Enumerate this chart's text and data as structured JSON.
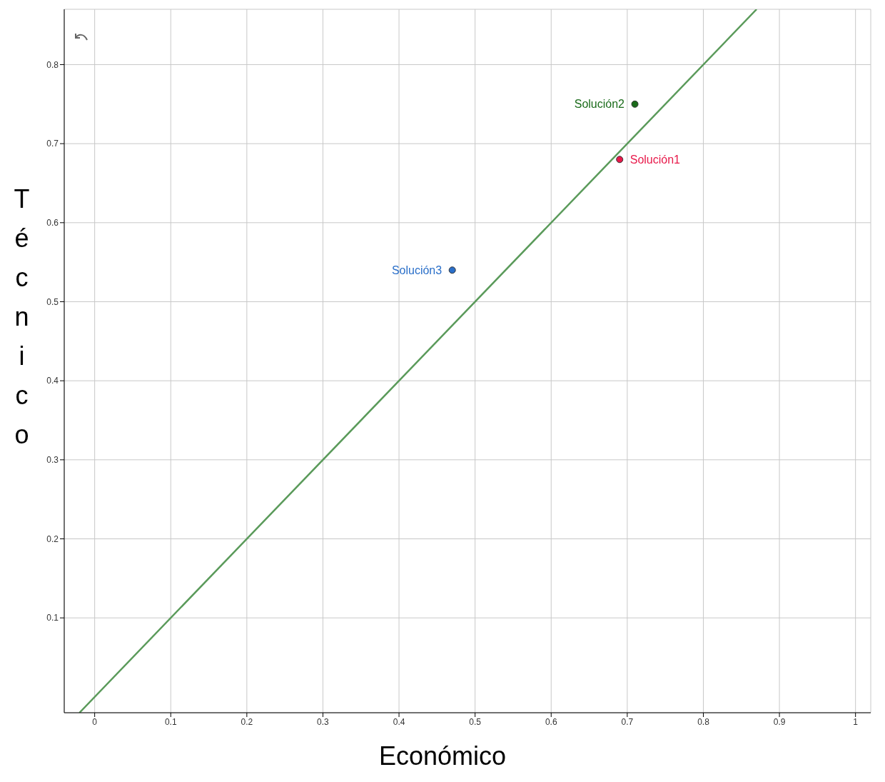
{
  "chart_data": {
    "type": "scatter",
    "xlabel": "Económico",
    "ylabel": "Técnico",
    "xlim": [
      -0.04,
      1.02
    ],
    "ylim": [
      -0.02,
      0.87
    ],
    "xticks": [
      0,
      0.1,
      0.2,
      0.3,
      0.4,
      0.5,
      0.6,
      0.7,
      0.8,
      0.9,
      1
    ],
    "yticks": [
      0.1,
      0.2,
      0.3,
      0.4,
      0.5,
      0.6,
      0.7,
      0.8
    ],
    "grid": true,
    "legend": false,
    "marker": "circle",
    "line_style": "solid",
    "series": [
      {
        "name": "Solución1",
        "color": "#e8194a",
        "x": [
          0.69
        ],
        "values": [
          0.68
        ]
      },
      {
        "name": "Solución2",
        "color": "#1a6b1a",
        "x": [
          0.71
        ],
        "values": [
          0.75
        ]
      },
      {
        "name": "Solución3",
        "color": "#2a6fc9",
        "x": [
          0.47
        ],
        "values": [
          0.54
        ]
      },
      {
        "type": "line",
        "marker": "none",
        "color": "#5a9a5a",
        "x": [
          -0.02,
          0.87
        ],
        "values": [
          -0.02,
          0.87
        ]
      }
    ]
  }
}
